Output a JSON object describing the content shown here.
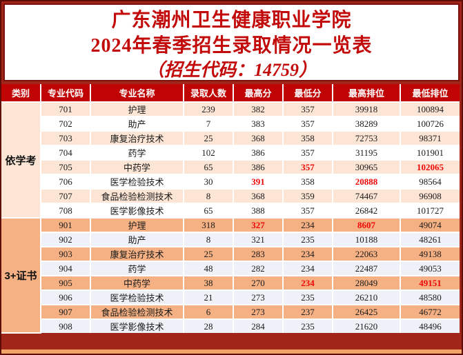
{
  "title": {
    "line1": "广东潮州卫生健康职业学院",
    "line2": "2024年春季招生录取情况一览表",
    "line3": "（招生代码：14759）"
  },
  "colors": {
    "header_red": "#C00404",
    "title_red": "#C20A0A",
    "highlight_red": "#F00606",
    "peach_stripe": "#FCE5D5",
    "orange_stripe": "#F5B183",
    "bluewhite_stripe": "#EEF1F8",
    "frame_dark_red": "#5E0C06",
    "page_red": "#A2251A",
    "bottom_orange": "#F2A469"
  },
  "table": {
    "headers": [
      "类别",
      "专业代码",
      "专业名称",
      "录取人数",
      "最高分",
      "最低分",
      "最高排位",
      "最低排位"
    ],
    "field_order": [
      "code",
      "major",
      "count",
      "max_score",
      "min_score",
      "max_rank",
      "min_rank"
    ],
    "groups": [
      {
        "category": "依学考",
        "rows": [
          {
            "code": "701",
            "major": "护理",
            "count": "239",
            "max_score": "382",
            "min_score": "357",
            "max_rank": "39918",
            "min_rank": "100894",
            "red": []
          },
          {
            "code": "702",
            "major": "助产",
            "count": "7",
            "max_score": "383",
            "min_score": "357",
            "max_rank": "38289",
            "min_rank": "100726",
            "red": []
          },
          {
            "code": "703",
            "major": "康复治疗技术",
            "count": "25",
            "max_score": "368",
            "min_score": "358",
            "max_rank": "72753",
            "min_rank": "98371",
            "red": []
          },
          {
            "code": "704",
            "major": "药学",
            "count": "102",
            "max_score": "386",
            "min_score": "357",
            "max_rank": "31195",
            "min_rank": "101901",
            "red": []
          },
          {
            "code": "705",
            "major": "中药学",
            "count": "65",
            "max_score": "386",
            "min_score": "357",
            "max_rank": "30965",
            "min_rank": "102065",
            "red": [
              "min_score",
              "min_rank"
            ]
          },
          {
            "code": "706",
            "major": "医学检验技术",
            "count": "30",
            "max_score": "391",
            "min_score": "358",
            "max_rank": "20888",
            "min_rank": "98564",
            "red": [
              "max_score",
              "max_rank"
            ]
          },
          {
            "code": "707",
            "major": "食品检验检测技术",
            "count": "8",
            "max_score": "368",
            "min_score": "359",
            "max_rank": "74467",
            "min_rank": "96908",
            "red": []
          },
          {
            "code": "708",
            "major": "医学影像技术",
            "count": "65",
            "max_score": "388",
            "min_score": "357",
            "max_rank": "26842",
            "min_rank": "101727",
            "red": []
          }
        ]
      },
      {
        "category": "3+证书",
        "rows": [
          {
            "code": "901",
            "major": "护理",
            "count": "318",
            "max_score": "327",
            "min_score": "234",
            "max_rank": "8607",
            "min_rank": "49074",
            "red": [
              "max_score",
              "max_rank"
            ]
          },
          {
            "code": "902",
            "major": "助产",
            "count": "8",
            "max_score": "321",
            "min_score": "235",
            "max_rank": "10188",
            "min_rank": "48261",
            "red": []
          },
          {
            "code": "903",
            "major": "康复治疗技术",
            "count": "25",
            "max_score": "283",
            "min_score": "234",
            "max_rank": "22063",
            "min_rank": "49138",
            "red": []
          },
          {
            "code": "904",
            "major": "药学",
            "count": "48",
            "max_score": "282",
            "min_score": "234",
            "max_rank": "22487",
            "min_rank": "49053",
            "red": []
          },
          {
            "code": "905",
            "major": "中药学",
            "count": "38",
            "max_score": "270",
            "min_score": "234",
            "max_rank": "28049",
            "min_rank": "49151",
            "red": [
              "min_score",
              "min_rank"
            ]
          },
          {
            "code": "906",
            "major": "医学检验技术",
            "count": "21",
            "max_score": "273",
            "min_score": "235",
            "max_rank": "26210",
            "min_rank": "48580",
            "red": []
          },
          {
            "code": "907",
            "major": "食品检验检测技术",
            "count": "6",
            "max_score": "273",
            "min_score": "237",
            "max_rank": "26425",
            "min_rank": "46772",
            "red": []
          },
          {
            "code": "908",
            "major": "医学影像技术",
            "count": "28",
            "max_score": "284",
            "min_score": "235",
            "max_rank": "21620",
            "min_rank": "48496",
            "red": []
          }
        ]
      }
    ]
  }
}
